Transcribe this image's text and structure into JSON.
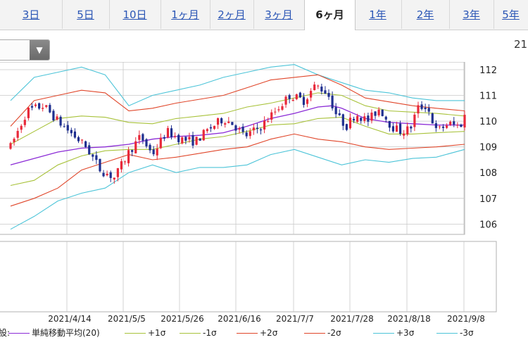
{
  "tabs": [
    {
      "label": "3日",
      "active": false
    },
    {
      "label": "5日",
      "active": false
    },
    {
      "label": "10日",
      "active": false
    },
    {
      "label": "1ヶ月",
      "active": false
    },
    {
      "label": "2ヶ月",
      "active": false
    },
    {
      "label": "3ヶ月",
      "active": false
    },
    {
      "label": "6ヶ月",
      "active": true
    },
    {
      "label": "1年",
      "active": false
    },
    {
      "label": "2年",
      "active": false
    },
    {
      "label": "3年",
      "active": false
    },
    {
      "label": "5年",
      "active": false
    }
  ],
  "header_value": "21",
  "legend": {
    "prefix": "設:",
    "items": [
      {
        "label": "単純移動平均(20)",
        "color": "#8b2bd6"
      },
      {
        "label": "+1σ",
        "color": "#a8c23a"
      },
      {
        "label": "-1σ",
        "color": "#a8c23a"
      },
      {
        "label": "+2σ",
        "color": "#e0462a"
      },
      {
        "label": "-2σ",
        "color": "#e0462a"
      },
      {
        "label": "+3σ",
        "color": "#4cc4d8"
      },
      {
        "label": "-3σ",
        "color": "#4cc4d8"
      }
    ]
  },
  "chart_data": {
    "type": "candlestick",
    "y_ticks": [
      106,
      107,
      108,
      109,
      110,
      111,
      112
    ],
    "ylim": [
      105.6,
      112.3
    ],
    "x_tick_labels": [
      "2021/4/14",
      "2021/5/5",
      "2021/5/26",
      "2021/6/16",
      "2021/7/7",
      "2021/7/28",
      "2021/8/18",
      "2021/9/8"
    ],
    "colors": {
      "up": "#e8293a",
      "down": "#1f2f8f",
      "sma": "#8b2bd6",
      "sigma1": "#a8c23a",
      "sigma2": "#e0462a",
      "sigma3": "#4cc4d8",
      "grid": "#c8c8c8"
    },
    "sma": [
      [
        0,
        108.3
      ],
      [
        0.5,
        108.55
      ],
      [
        1,
        108.8
      ],
      [
        1.5,
        108.95
      ],
      [
        2,
        109.0
      ],
      [
        2.5,
        109.1
      ],
      [
        3,
        109.3
      ],
      [
        3.5,
        109.4
      ],
      [
        4,
        109.45
      ],
      [
        4.5,
        109.55
      ],
      [
        5,
        109.8
      ],
      [
        5.5,
        110.1
      ],
      [
        6,
        110.3
      ],
      [
        6.5,
        110.55
      ],
      [
        6.8,
        110.6
      ],
      [
        7,
        110.5
      ],
      [
        7.5,
        110.1
      ],
      [
        8,
        109.95
      ],
      [
        8.5,
        109.9
      ],
      [
        9,
        109.85
      ],
      [
        9.6,
        109.85
      ]
    ],
    "bands": {
      "p1": [
        [
          0,
          109.1
        ],
        [
          0.5,
          109.6
        ],
        [
          1,
          110.1
        ],
        [
          1.5,
          110.2
        ],
        [
          2,
          110.15
        ],
        [
          2.5,
          109.95
        ],
        [
          3,
          109.9
        ],
        [
          3.5,
          110.1
        ],
        [
          4,
          110.2
        ],
        [
          4.5,
          110.3
        ],
        [
          5,
          110.55
        ],
        [
          5.5,
          110.7
        ],
        [
          6,
          110.9
        ],
        [
          6.5,
          111.1
        ],
        [
          7,
          111.0
        ],
        [
          7.5,
          110.6
        ],
        [
          8,
          110.4
        ],
        [
          8.5,
          110.35
        ],
        [
          9,
          110.3
        ],
        [
          9.6,
          110.2
        ]
      ],
      "m1": [
        [
          0,
          107.5
        ],
        [
          0.5,
          107.7
        ],
        [
          1,
          108.3
        ],
        [
          1.5,
          108.65
        ],
        [
          2,
          108.85
        ],
        [
          2.5,
          108.9
        ],
        [
          3,
          108.9
        ],
        [
          3.5,
          109.1
        ],
        [
          4,
          109.3
        ],
        [
          4.5,
          109.4
        ],
        [
          5,
          109.6
        ],
        [
          5.5,
          109.85
        ],
        [
          6,
          109.9
        ],
        [
          6.5,
          110.1
        ],
        [
          7,
          110.15
        ],
        [
          7.5,
          109.8
        ],
        [
          8,
          109.5
        ],
        [
          8.5,
          109.5
        ],
        [
          9,
          109.55
        ],
        [
          9.6,
          109.6
        ]
      ],
      "p2": [
        [
          0,
          109.8
        ],
        [
          0.5,
          110.8
        ],
        [
          1,
          111.0
        ],
        [
          1.5,
          111.2
        ],
        [
          2,
          111.1
        ],
        [
          2.5,
          110.4
        ],
        [
          3,
          110.5
        ],
        [
          3.5,
          110.7
        ],
        [
          4,
          110.85
        ],
        [
          4.5,
          111.0
        ],
        [
          5,
          111.3
        ],
        [
          5.5,
          111.6
        ],
        [
          6,
          111.7
        ],
        [
          6.5,
          111.8
        ],
        [
          7,
          111.4
        ],
        [
          7.5,
          110.9
        ],
        [
          8,
          110.75
        ],
        [
          8.5,
          110.6
        ],
        [
          9,
          110.5
        ],
        [
          9.6,
          110.4
        ]
      ],
      "m2": [
        [
          0,
          106.7
        ],
        [
          0.5,
          107.0
        ],
        [
          1,
          107.4
        ],
        [
          1.5,
          108.1
        ],
        [
          2,
          108.4
        ],
        [
          2.5,
          108.7
        ],
        [
          3,
          108.5
        ],
        [
          3.5,
          108.6
        ],
        [
          4,
          108.75
        ],
        [
          4.5,
          108.9
        ],
        [
          5,
          109.0
        ],
        [
          5.5,
          109.3
        ],
        [
          6,
          109.5
        ],
        [
          6.5,
          109.3
        ],
        [
          7,
          109.2
        ],
        [
          7.5,
          109.0
        ],
        [
          8,
          108.9
        ],
        [
          8.5,
          108.95
        ],
        [
          9,
          109.0
        ],
        [
          9.6,
          109.1
        ]
      ],
      "p3": [
        [
          0,
          110.8
        ],
        [
          0.5,
          111.7
        ],
        [
          1,
          111.9
        ],
        [
          1.5,
          112.1
        ],
        [
          2,
          111.8
        ],
        [
          2.5,
          110.6
        ],
        [
          3,
          111.0
        ],
        [
          3.5,
          111.2
        ],
        [
          4,
          111.4
        ],
        [
          4.5,
          111.7
        ],
        [
          5,
          111.9
        ],
        [
          5.5,
          112.1
        ],
        [
          6,
          112.2
        ],
        [
          6.5,
          111.8
        ],
        [
          7,
          111.5
        ],
        [
          7.5,
          111.2
        ],
        [
          8,
          111.1
        ],
        [
          8.5,
          110.9
        ],
        [
          9,
          110.8
        ],
        [
          9.6,
          110.8
        ]
      ],
      "m3": [
        [
          0,
          105.8
        ],
        [
          0.5,
          106.3
        ],
        [
          1,
          106.9
        ],
        [
          1.5,
          107.2
        ],
        [
          2,
          107.4
        ],
        [
          2.5,
          108.0
        ],
        [
          3,
          108.3
        ],
        [
          3.5,
          108.0
        ],
        [
          4,
          108.2
        ],
        [
          4.5,
          108.2
        ],
        [
          5,
          108.3
        ],
        [
          5.5,
          108.7
        ],
        [
          6,
          108.9
        ],
        [
          6.5,
          108.6
        ],
        [
          7,
          108.3
        ],
        [
          7.5,
          108.5
        ],
        [
          8,
          108.4
        ],
        [
          8.5,
          108.55
        ],
        [
          9,
          108.6
        ],
        [
          9.6,
          108.9
        ]
      ]
    },
    "anchors": [
      [
        0,
        109.0
      ],
      [
        0.35,
        110.4
      ],
      [
        0.7,
        110.6
      ],
      [
        1.0,
        110.0
      ],
      [
        1.3,
        109.5
      ],
      [
        1.6,
        109.0
      ],
      [
        1.9,
        108.1
      ],
      [
        2.2,
        107.8
      ],
      [
        2.5,
        108.8
      ],
      [
        2.75,
        109.4
      ],
      [
        3.0,
        108.7
      ],
      [
        3.3,
        109.6
      ],
      [
        3.6,
        109.3
      ],
      [
        3.9,
        109.2
      ],
      [
        4.2,
        109.7
      ],
      [
        4.5,
        110.1
      ],
      [
        4.7,
        109.9
      ],
      [
        4.95,
        109.4
      ],
      [
        5.3,
        109.8
      ],
      [
        5.6,
        110.4
      ],
      [
        5.9,
        111.0
      ],
      [
        6.2,
        110.8
      ],
      [
        6.45,
        111.4
      ],
      [
        6.7,
        111.1
      ],
      [
        6.9,
        110.2
      ],
      [
        7.1,
        109.8
      ],
      [
        7.3,
        110.3
      ],
      [
        7.55,
        110.0
      ],
      [
        7.8,
        110.5
      ],
      [
        8.05,
        109.8
      ],
      [
        8.25,
        109.6
      ],
      [
        8.45,
        109.7
      ],
      [
        8.6,
        110.5
      ],
      [
        8.8,
        110.6
      ],
      [
        9.0,
        109.6
      ],
      [
        9.25,
        109.9
      ],
      [
        9.5,
        109.8
      ],
      [
        9.6,
        110.2
      ]
    ]
  }
}
